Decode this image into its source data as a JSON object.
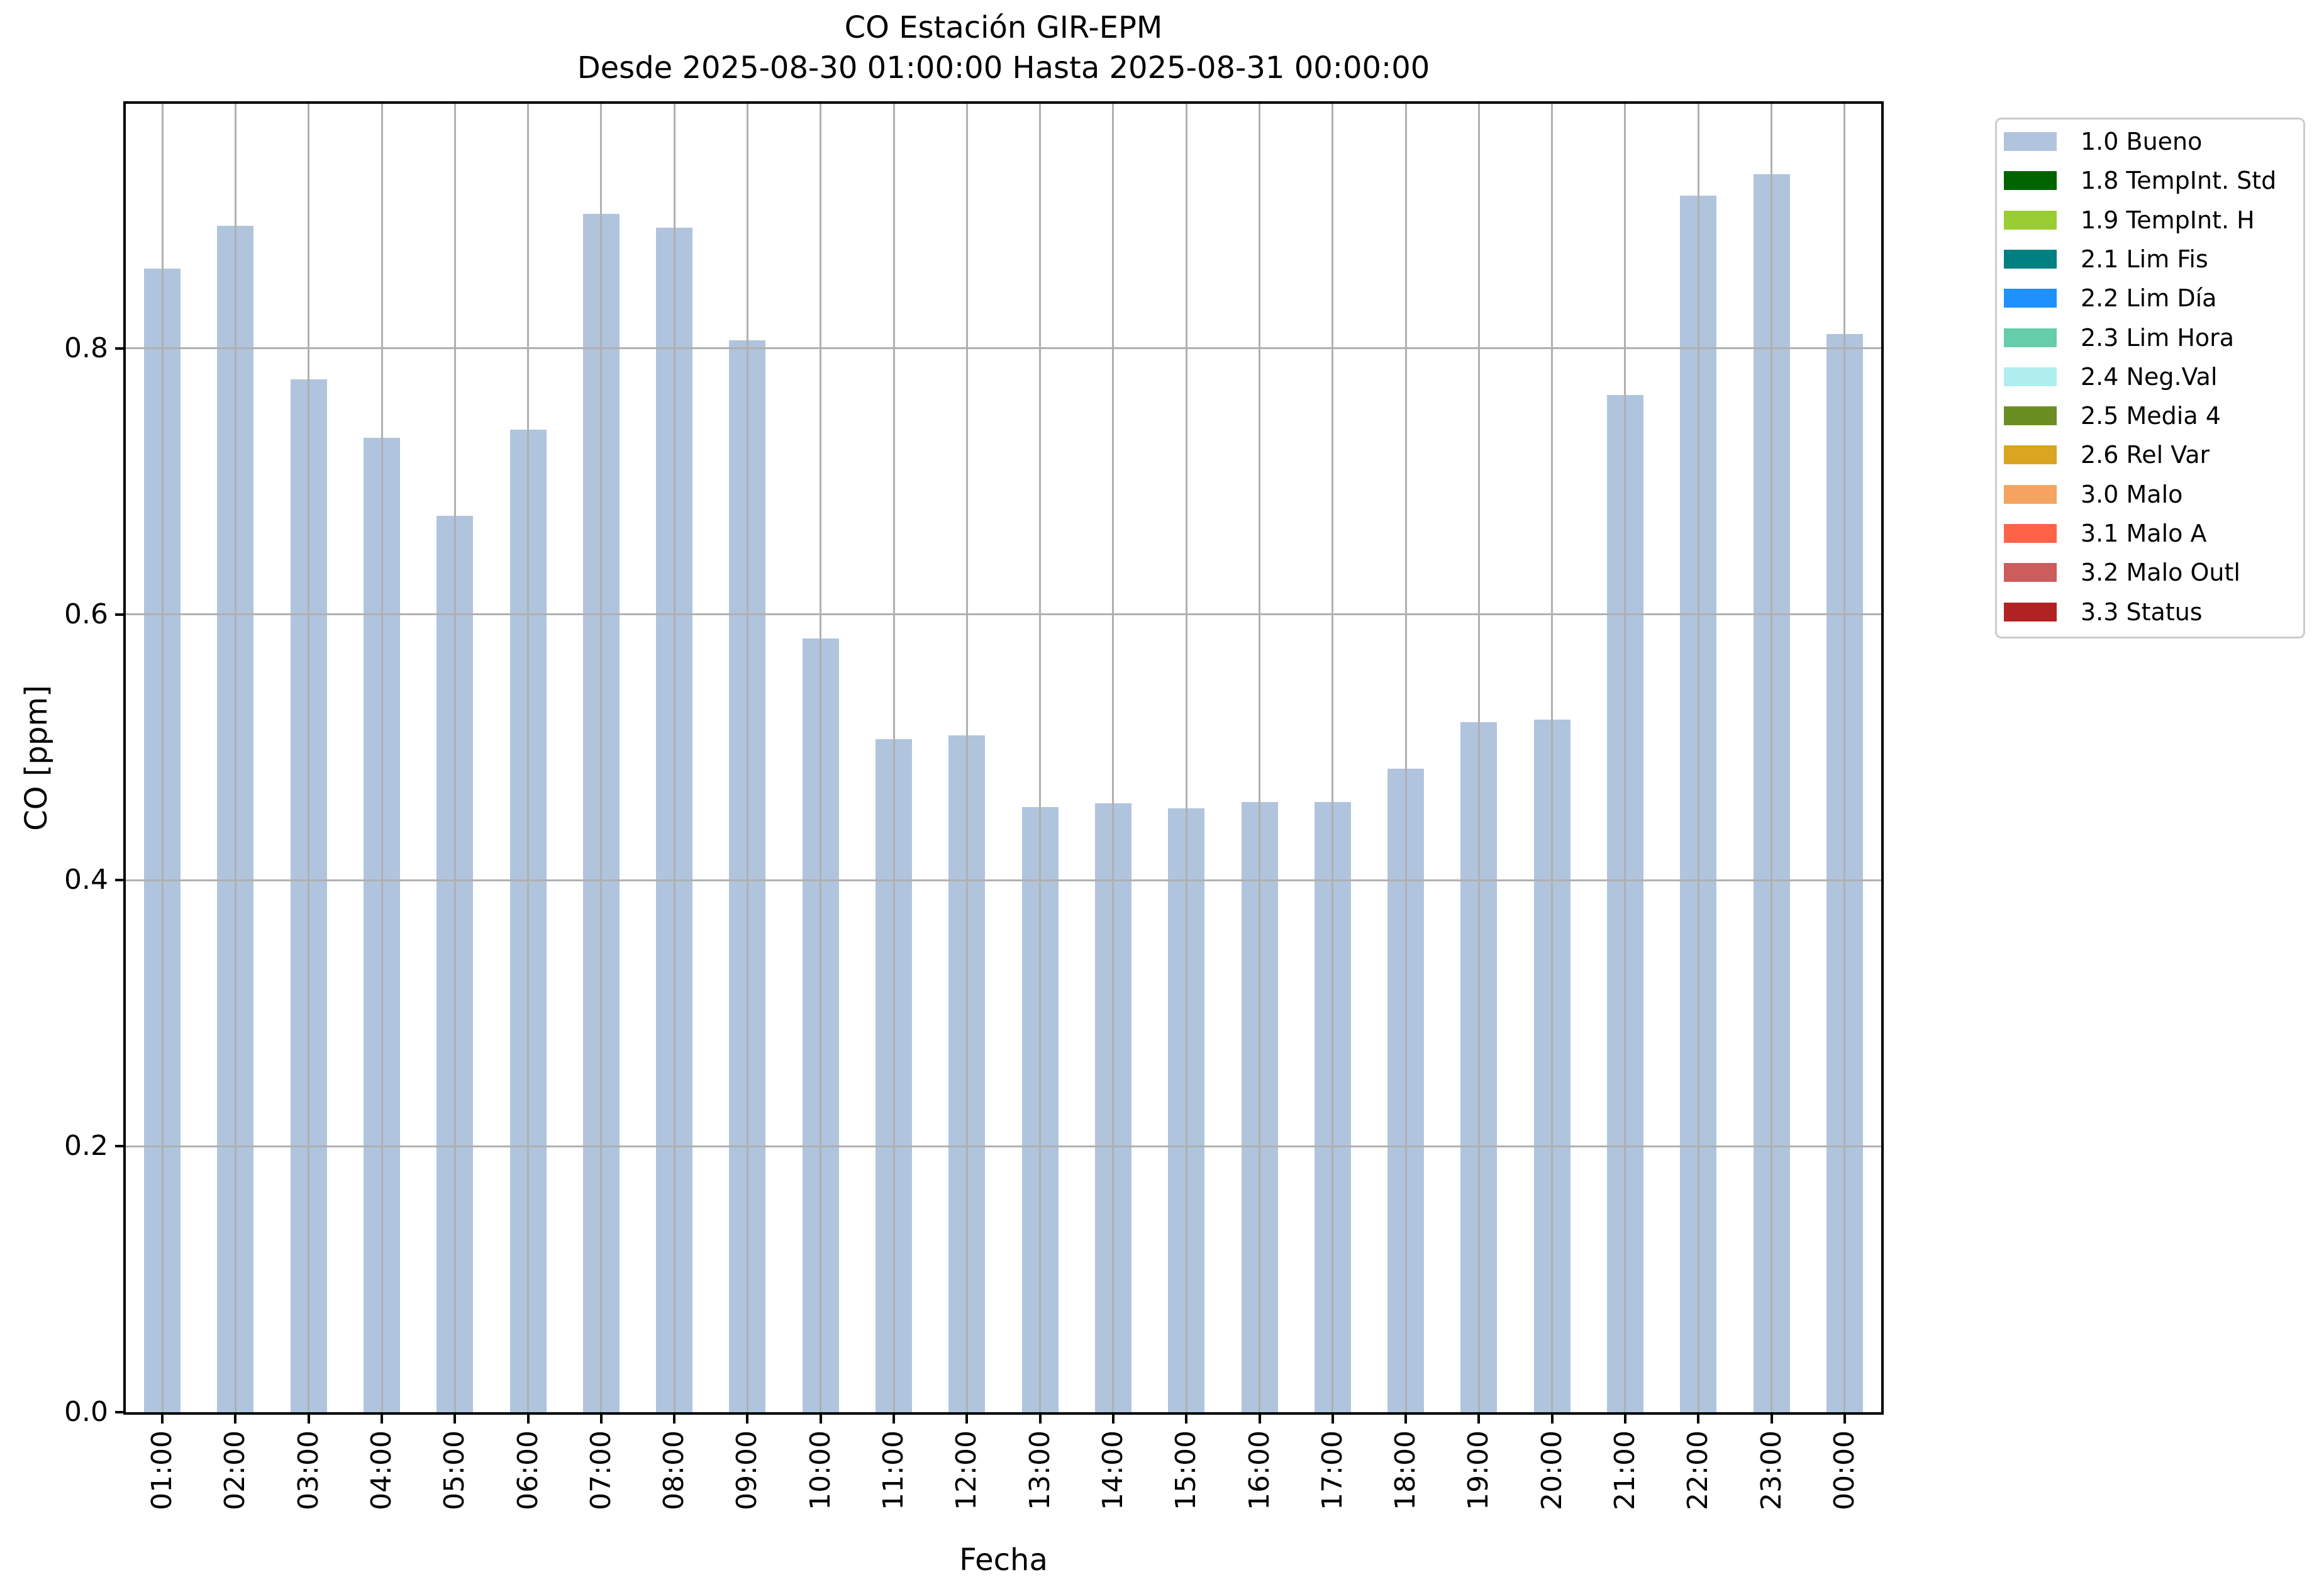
{
  "figure": {
    "background": "#ffffff",
    "text_color": "#000000",
    "axis_color": "#000000"
  },
  "chart_data": {
    "type": "bar",
    "title": "CO Estación GIR-EPM",
    "subtitle": "Desde 2025-08-30 01:00:00 Hasta 2025-08-31 00:00:00",
    "xlabel": "Fecha",
    "ylabel": "CO [ppm]",
    "categories": [
      "01:00",
      "02:00",
      "03:00",
      "04:00",
      "05:00",
      "06:00",
      "07:00",
      "08:00",
      "09:00",
      "10:00",
      "11:00",
      "12:00",
      "13:00",
      "14:00",
      "15:00",
      "16:00",
      "17:00",
      "18:00",
      "19:00",
      "20:00",
      "21:00",
      "22:00",
      "23:00",
      "00:00"
    ],
    "series": [
      {
        "name": "1.0 Bueno",
        "color": "#b0c4de",
        "values": [
          0.86,
          0.892,
          0.777,
          0.733,
          0.674,
          0.739,
          0.901,
          0.891,
          0.806,
          0.582,
          0.506,
          0.509,
          0.455,
          0.458,
          0.454,
          0.459,
          0.459,
          0.484,
          0.519,
          0.521,
          0.765,
          0.915,
          0.931,
          0.811
        ]
      }
    ],
    "ylim": [
      0,
      0.984
    ],
    "yticks": [
      0.0,
      0.2,
      0.4,
      0.6,
      0.8
    ],
    "grid": true,
    "grid_color": "#b0b0b0",
    "bar_width_fraction": 0.5,
    "xtick_rotation": 90,
    "legend_position": "outside-upper-right",
    "legend": [
      {
        "label": "1.0 Bueno",
        "color": "#b0c4de"
      },
      {
        "label": "1.8 TempInt. Std",
        "color": "#006400"
      },
      {
        "label": "1.9 TempInt. H",
        "color": "#9acd32"
      },
      {
        "label": "2.1 Lim Fis",
        "color": "#008080"
      },
      {
        "label": "2.2 Lim Día",
        "color": "#1e90ff"
      },
      {
        "label": "2.3 Lim Hora",
        "color": "#66cdaa"
      },
      {
        "label": "2.4 Neg.Val",
        "color": "#afeeee"
      },
      {
        "label": "2.5 Media 4",
        "color": "#6b8e23"
      },
      {
        "label": "2.6 Rel Var",
        "color": "#daa520"
      },
      {
        "label": "3.0 Malo",
        "color": "#f4a460"
      },
      {
        "label": "3.1 Malo A",
        "color": "#ff6347"
      },
      {
        "label": "3.2 Malo Outl",
        "color": "#cd5c5c"
      },
      {
        "label": "3.3 Status",
        "color": "#b22222"
      }
    ]
  }
}
